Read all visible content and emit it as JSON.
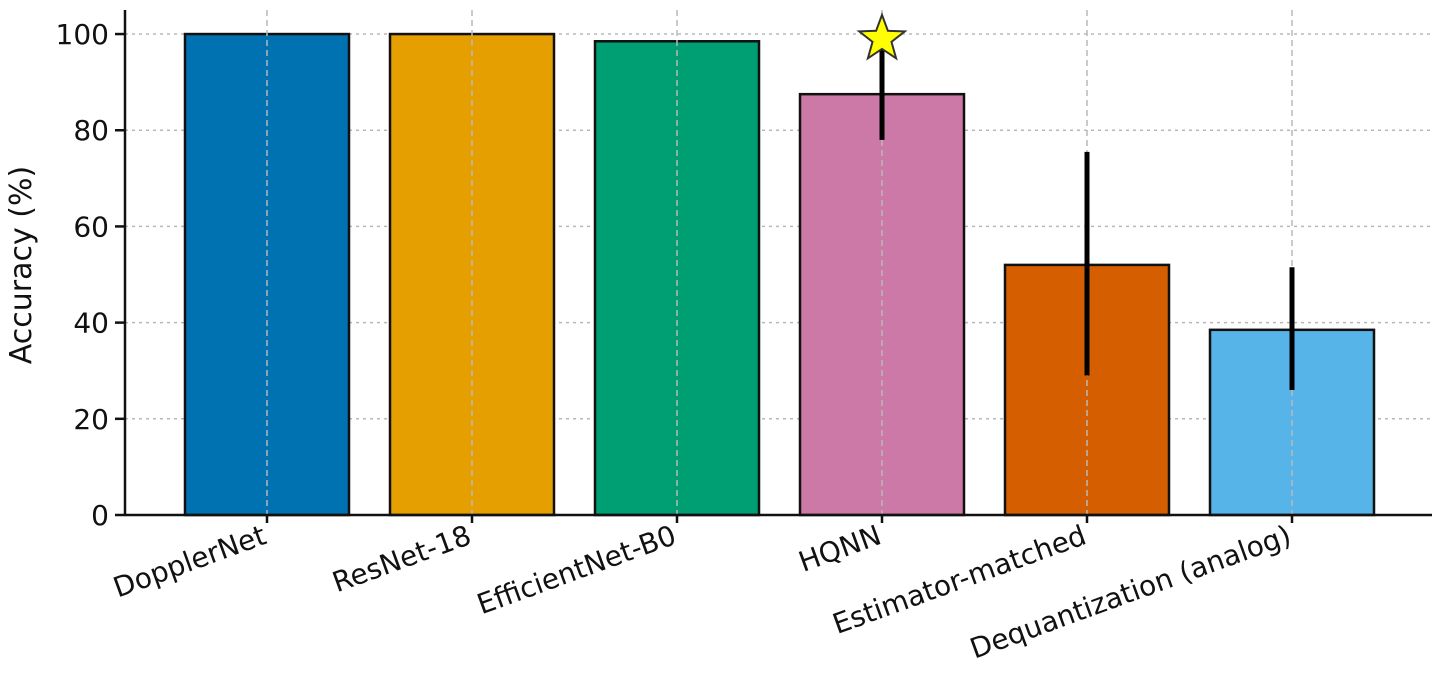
{
  "chart_data": {
    "type": "bar",
    "title": "",
    "xlabel": "",
    "ylabel": "Accuracy (%)",
    "ylim": [
      0,
      105
    ],
    "yticks": [
      0,
      20,
      40,
      60,
      80,
      100
    ],
    "grid": true,
    "categories": [
      "DopplerNet",
      "ResNet-18",
      "EfficientNet-B0",
      "HQNN",
      "Estimator-matched",
      "Dequantization (analog)"
    ],
    "values": [
      100,
      100,
      98.5,
      87.5,
      52,
      38.5
    ],
    "error_low": [
      null,
      null,
      null,
      78,
      29,
      26
    ],
    "error_high": [
      null,
      null,
      null,
      98,
      75.5,
      51.5
    ],
    "highlight": {
      "category": "HQNN",
      "marker": "star",
      "value": 99,
      "color": "#FFFF00"
    },
    "colors": [
      "#0072B2",
      "#E69F00",
      "#009E73",
      "#CC79A7",
      "#D55E00",
      "#56B4E9"
    ]
  }
}
